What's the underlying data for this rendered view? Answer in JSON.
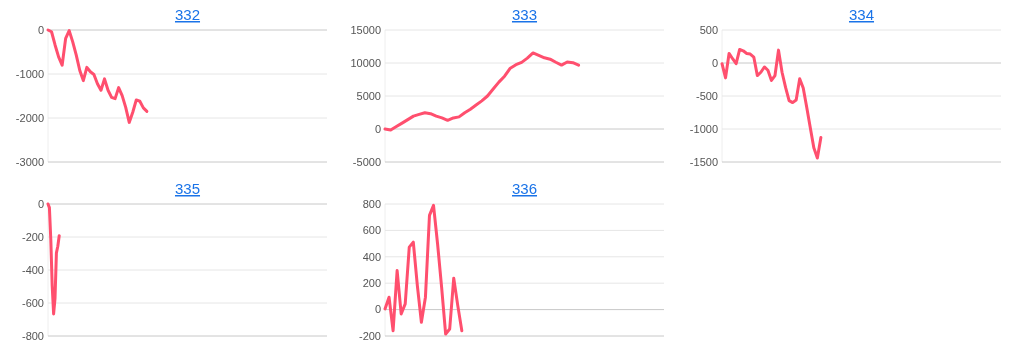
{
  "chart_data": [
    {
      "type": "line",
      "title": "332",
      "ylim": [
        -3000,
        0
      ],
      "yticks": [
        -3000,
        -2000,
        -1000,
        0
      ],
      "grid": "y",
      "tick_labels": "y",
      "categories": [
        null,
        null,
        null,
        null,
        null,
        null,
        null,
        null,
        null,
        null,
        null,
        null,
        null,
        null,
        null,
        null,
        null,
        null,
        null,
        null,
        null,
        null,
        null,
        null,
        null,
        null,
        null,
        null,
        null,
        null,
        null,
        null,
        null,
        null,
        null,
        null,
        null,
        null,
        null,
        null,
        null,
        null,
        null,
        null,
        null,
        null,
        null,
        null,
        null,
        null,
        null,
        null,
        null,
        null,
        null,
        null,
        null,
        null,
        null,
        null,
        null,
        null,
        null,
        null,
        null,
        null,
        null,
        null,
        null,
        null,
        null,
        null,
        null,
        null,
        null,
        null,
        null,
        null,
        null,
        null
      ],
      "series": [
        {
          "color": "#ff4f6e",
          "values": [
            0,
            -40,
            -340,
            -610,
            -800,
            -190,
            -15,
            -270,
            -570,
            -920,
            -1150,
            -850,
            -950,
            -1010,
            -1220,
            -1370,
            -1110,
            -1370,
            -1530,
            -1560,
            -1310,
            -1490,
            -1760,
            -2100,
            -1870,
            -1590,
            -1620,
            -1770,
            -1850,
            null,
            null,
            null,
            null,
            null,
            null,
            null,
            null,
            null,
            null,
            null,
            null,
            null,
            null,
            null,
            null,
            null,
            null,
            null,
            null,
            null,
            null,
            null,
            null,
            null,
            null,
            null,
            null,
            null,
            null,
            null,
            null,
            null,
            null,
            null,
            null,
            null,
            null,
            null,
            null,
            null,
            null,
            null,
            null,
            null,
            null,
            null,
            null,
            null,
            null,
            null
          ]
        }
      ]
    },
    {
      "type": "line",
      "title": "333",
      "ylim": [
        -5000,
        15000
      ],
      "yticks": [
        -5000,
        0,
        5000,
        10000,
        15000
      ],
      "grid": "y",
      "tick_labels": "y",
      "categories": [
        null,
        null,
        null,
        null,
        null,
        null,
        null,
        null,
        null,
        null,
        null,
        null,
        null,
        null,
        null,
        null,
        null,
        null,
        null,
        null,
        null,
        null,
        null,
        null,
        null,
        null,
        null,
        null,
        null,
        null,
        null,
        null,
        null,
        null,
        null,
        null,
        null,
        null,
        null,
        null,
        null,
        null,
        null,
        null,
        null,
        null,
        null,
        null,
        null,
        null
      ],
      "series": [
        {
          "color": "#ff4f6e",
          "values": [
            0,
            -160,
            370,
            890,
            1420,
            1950,
            2210,
            2470,
            2320,
            1950,
            1680,
            1320,
            1680,
            1840,
            2470,
            3000,
            3630,
            4260,
            5000,
            6050,
            7100,
            8000,
            9210,
            9740,
            10100,
            10740,
            11530,
            11160,
            10790,
            10580,
            10110,
            9680,
            10160,
            10050,
            9680,
            null,
            null,
            null,
            null,
            null,
            null,
            null,
            null,
            null,
            null,
            null,
            null,
            null,
            null,
            null
          ]
        }
      ]
    },
    {
      "type": "line",
      "title": "334",
      "ylim": [
        -1500,
        500
      ],
      "yticks": [
        -1500,
        -1000,
        -500,
        0,
        500
      ],
      "grid": "y",
      "tick_labels": "y",
      "categories": [
        null,
        null,
        null,
        null,
        null,
        null,
        null,
        null,
        null,
        null,
        null,
        null,
        null,
        null,
        null,
        null,
        null,
        null,
        null,
        null,
        null,
        null,
        null,
        null,
        null,
        null,
        null,
        null,
        null,
        null,
        null,
        null,
        null,
        null,
        null,
        null,
        null,
        null,
        null,
        null,
        null,
        null,
        null,
        null,
        null,
        null,
        null,
        null,
        null,
        null,
        null,
        null,
        null,
        null,
        null,
        null,
        null,
        null,
        null,
        null,
        null,
        null,
        null,
        null,
        null,
        null,
        null,
        null,
        null,
        null,
        null,
        null,
        null,
        null,
        null,
        null,
        null,
        null,
        null,
        null
      ],
      "series": [
        {
          "color": "#ff4f6e",
          "values": [
            -10,
            -225,
            145,
            65,
            -10,
            205,
            185,
            145,
            135,
            90,
            -190,
            -140,
            -60,
            -110,
            -265,
            -190,
            195,
            -140,
            -370,
            -570,
            -600,
            -560,
            -240,
            -380,
            -675,
            -980,
            -1285,
            -1440,
            -1130,
            null,
            null,
            null,
            null,
            null,
            null,
            null,
            null,
            null,
            null,
            null,
            null,
            null,
            null,
            null,
            null,
            null,
            null,
            null,
            null,
            null,
            null,
            null,
            null,
            null,
            null,
            null,
            null,
            null,
            null,
            null,
            null,
            null,
            null,
            null,
            null,
            null,
            null,
            null,
            null,
            null,
            null,
            null,
            null,
            null,
            null,
            null,
            null,
            null,
            null,
            null
          ]
        }
      ]
    },
    {
      "type": "line",
      "title": "335",
      "ylim": [
        -800,
        0
      ],
      "yticks": [
        -800,
        -600,
        -400,
        -200,
        0
      ],
      "grid": "y",
      "tick_labels": "y",
      "categories": [
        null,
        null,
        null,
        null,
        null,
        null,
        null,
        null,
        null,
        null,
        null,
        null,
        null,
        null,
        null,
        null,
        null,
        null,
        null,
        null,
        null,
        null,
        null,
        null,
        null,
        null,
        null,
        null,
        null,
        null,
        null,
        null,
        null,
        null,
        null,
        null,
        null,
        null,
        null,
        null,
        null,
        null,
        null,
        null,
        null,
        null,
        null,
        null,
        null,
        null,
        null,
        null,
        null,
        null,
        null,
        null,
        null,
        null,
        null,
        null,
        null,
        null,
        null,
        null,
        null,
        null,
        null,
        null,
        null,
        null,
        null,
        null,
        null,
        null,
        null,
        null,
        null,
        null,
        null,
        null,
        null,
        null,
        null,
        null,
        null,
        null,
        null,
        null,
        null,
        null,
        null,
        null,
        null,
        null,
        null,
        null,
        null,
        null,
        null,
        null,
        null,
        null,
        null,
        null,
        null,
        null,
        null,
        null,
        null,
        null,
        null,
        null,
        null,
        null,
        null,
        null,
        null,
        null,
        null,
        null,
        null,
        null,
        null,
        null,
        null,
        null,
        null,
        null,
        null,
        null,
        null,
        null,
        null,
        null,
        null,
        null,
        null,
        null,
        null,
        null,
        null,
        null,
        null,
        null,
        null,
        null,
        null,
        null,
        null,
        null,
        null,
        null,
        null,
        null,
        null,
        null,
        null,
        null,
        null,
        null,
        null,
        null,
        null,
        null,
        null,
        null,
        null,
        null,
        null,
        null,
        null,
        null,
        null,
        null,
        null,
        null,
        null,
        null,
        null,
        null,
        null,
        null,
        null,
        null,
        null,
        null,
        null,
        null,
        null,
        null,
        null,
        null,
        null,
        null,
        null,
        null,
        null,
        null,
        null,
        null
      ],
      "series": [
        {
          "color": "#ff4f6e",
          "values": [
            0,
            -22,
            -216,
            -496,
            -666,
            -572,
            -296,
            -256,
            -192,
            null,
            null,
            null,
            null,
            null,
            null,
            null,
            null,
            null,
            null,
            null,
            null,
            null,
            null,
            null,
            null,
            null,
            null,
            null,
            null,
            null,
            null,
            null,
            null,
            null,
            null,
            null,
            null,
            null,
            null,
            null,
            null,
            null,
            null,
            null,
            null,
            null,
            null,
            null,
            null,
            null,
            null,
            null,
            null,
            null,
            null,
            null,
            null,
            null,
            null,
            null,
            null,
            null,
            null,
            null,
            null,
            null,
            null,
            null,
            null,
            null,
            null,
            null,
            null,
            null,
            null,
            null,
            null,
            null,
            null,
            null,
            null,
            null,
            null,
            null,
            null,
            null,
            null,
            null,
            null,
            null,
            null,
            null,
            null,
            null,
            null,
            null,
            null,
            null,
            null,
            null,
            null,
            null,
            null,
            null,
            null,
            null,
            null,
            null,
            null,
            null,
            null,
            null,
            null,
            null,
            null,
            null,
            null,
            null,
            null,
            null,
            null,
            null,
            null,
            null,
            null,
            null,
            null,
            null,
            null,
            null,
            null,
            null,
            null,
            null,
            null,
            null,
            null,
            null,
            null,
            null,
            null,
            null,
            null,
            null,
            null,
            null,
            null,
            null,
            null,
            null,
            null,
            null,
            null,
            null,
            null,
            null,
            null,
            null,
            null,
            null,
            null,
            null,
            null,
            null,
            null,
            null,
            null,
            null,
            null,
            null,
            null,
            null,
            null,
            null,
            null,
            null,
            null,
            null,
            null,
            null,
            null,
            null,
            null,
            null,
            null,
            null,
            null,
            null,
            null,
            null,
            null,
            null,
            null,
            null,
            null,
            null,
            null,
            null,
            null,
            null
          ]
        }
      ]
    },
    {
      "type": "line",
      "title": "336",
      "ylim": [
        -200,
        800
      ],
      "yticks": [
        -200,
        0,
        200,
        400,
        600,
        800
      ],
      "grid": "y",
      "tick_labels": "y",
      "categories": [
        null,
        null,
        null,
        null,
        null,
        null,
        null,
        null,
        null,
        null,
        null,
        null,
        null,
        null,
        null,
        null,
        null,
        null,
        null,
        null,
        null,
        null,
        null,
        null,
        null,
        null,
        null,
        null,
        null,
        null,
        null,
        null,
        null,
        null,
        null,
        null,
        null,
        null,
        null,
        null,
        null,
        null,
        null,
        null,
        null,
        null,
        null,
        null,
        null,
        null,
        null,
        null,
        null,
        null,
        null,
        null,
        null,
        null,
        null,
        null,
        null,
        null,
        null,
        null,
        null,
        null,
        null,
        null,
        null,
        null
      ],
      "series": [
        {
          "color": "#ff4f6e",
          "values": [
            5,
            94,
            -160,
            296,
            -33,
            43,
            473,
            511,
            182,
            -96,
            94,
            714,
            790,
            499,
            170,
            -185,
            -147,
            238,
            30,
            -160,
            null,
            null,
            null,
            null,
            null,
            null,
            null,
            null,
            null,
            null,
            null,
            null,
            null,
            null,
            null,
            null,
            null,
            null,
            null,
            null,
            null,
            null,
            null,
            null,
            null,
            null,
            null,
            null,
            null,
            null,
            null,
            null,
            null,
            null,
            null,
            null,
            null,
            null,
            null,
            null,
            null,
            null,
            null,
            null,
            null,
            null,
            null,
            null,
            null,
            null
          ]
        }
      ]
    }
  ]
}
